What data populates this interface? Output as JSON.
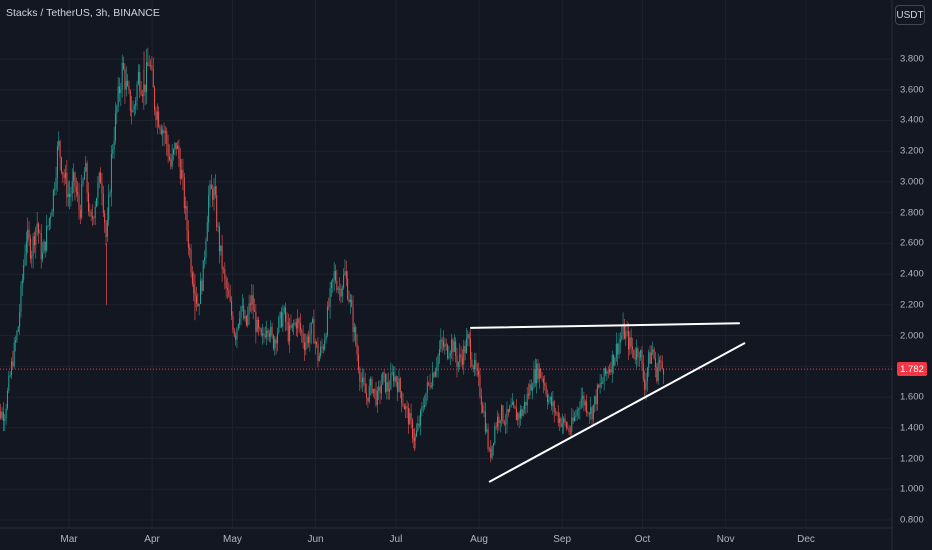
{
  "header": {
    "symbol_text": "Stacks / TetherUS, 3h, BINANCE",
    "currency_button": "USDT"
  },
  "colors": {
    "up": "#26a69a",
    "down": "#ef5350",
    "background": "#131722",
    "last_price": "#f23645",
    "trendline": "#ffffff"
  },
  "chart_data": {
    "type": "candlestick",
    "title": "Stacks / TetherUS, 3h, BINANCE",
    "x_range": [
      "2023-02-01",
      "2023-12-31"
    ],
    "ylim": [
      0.8,
      4.0
    ],
    "y_ticks": [
      "0.800",
      "1.000",
      "1.200",
      "1.400",
      "1.600",
      "1.800",
      "2.000",
      "2.200",
      "2.400",
      "2.600",
      "2.800",
      "3.000",
      "3.200",
      "3.400",
      "3.600",
      "3.800"
    ],
    "x_ticks": [
      {
        "label": "Mar",
        "date": "2023-03-01"
      },
      {
        "label": "Apr",
        "date": "2023-04-01"
      },
      {
        "label": "May",
        "date": "2023-05-01"
      },
      {
        "label": "Jun",
        "date": "2023-06-01"
      },
      {
        "label": "Jul",
        "date": "2023-07-01"
      },
      {
        "label": "Aug",
        "date": "2023-08-01"
      },
      {
        "label": "Sep",
        "date": "2023-09-01"
      },
      {
        "label": "Oct",
        "date": "2023-10-01"
      },
      {
        "label": "Nov",
        "date": "2023-11-01"
      },
      {
        "label": "Dec",
        "date": "2023-12-01"
      }
    ],
    "last_price": 1.782,
    "last_price_label": "1.782",
    "price_path": [
      [
        "2023-02-01",
        1.48
      ],
      [
        "2023-02-05",
        1.5
      ],
      [
        "2023-02-08",
        1.85
      ],
      [
        "2023-02-10",
        2.05
      ],
      [
        "2023-02-13",
        2.65
      ],
      [
        "2023-02-15",
        2.55
      ],
      [
        "2023-02-17",
        2.75
      ],
      [
        "2023-02-19",
        2.5
      ],
      [
        "2023-02-21",
        2.7
      ],
      [
        "2023-02-23",
        2.9
      ],
      [
        "2023-02-25",
        3.25
      ],
      [
        "2023-02-27",
        3.05
      ],
      [
        "2023-03-01",
        2.9
      ],
      [
        "2023-03-03",
        3.0
      ],
      [
        "2023-03-05",
        2.8
      ],
      [
        "2023-03-07",
        3.1
      ],
      [
        "2023-03-09",
        2.7
      ],
      [
        "2023-03-11",
        2.9
      ],
      [
        "2023-03-13",
        3.05
      ],
      [
        "2023-03-15",
        2.6
      ],
      [
        "2023-03-17",
        3.2
      ],
      [
        "2023-03-19",
        3.5
      ],
      [
        "2023-03-21",
        3.75
      ],
      [
        "2023-03-23",
        3.55
      ],
      [
        "2023-03-25",
        3.45
      ],
      [
        "2023-03-27",
        3.7
      ],
      [
        "2023-03-29",
        3.6
      ],
      [
        "2023-03-31",
        3.8
      ],
      [
        "2023-04-02",
        3.5
      ],
      [
        "2023-04-04",
        3.4
      ],
      [
        "2023-04-06",
        3.3
      ],
      [
        "2023-04-08",
        3.1
      ],
      [
        "2023-04-10",
        3.25
      ],
      [
        "2023-04-12",
        3.05
      ],
      [
        "2023-04-14",
        2.7
      ],
      [
        "2023-04-16",
        2.4
      ],
      [
        "2023-04-18",
        2.2
      ],
      [
        "2023-04-20",
        2.4
      ],
      [
        "2023-04-22",
        2.9
      ],
      [
        "2023-04-24",
        2.95
      ],
      [
        "2023-04-26",
        2.6
      ],
      [
        "2023-04-28",
        2.35
      ],
      [
        "2023-04-30",
        2.2
      ],
      [
        "2023-05-02",
        2.0
      ],
      [
        "2023-05-04",
        2.2
      ],
      [
        "2023-05-06",
        2.05
      ],
      [
        "2023-05-08",
        2.25
      ],
      [
        "2023-05-10",
        2.05
      ],
      [
        "2023-05-12",
        1.95
      ],
      [
        "2023-05-14",
        2.1
      ],
      [
        "2023-05-16",
        1.95
      ],
      [
        "2023-05-18",
        2.05
      ],
      [
        "2023-05-20",
        2.15
      ],
      [
        "2023-05-22",
        2.0
      ],
      [
        "2023-05-25",
        2.1
      ],
      [
        "2023-05-28",
        1.95
      ],
      [
        "2023-05-31",
        2.05
      ],
      [
        "2023-06-02",
        1.85
      ],
      [
        "2023-06-04",
        1.95
      ],
      [
        "2023-06-06",
        2.2
      ],
      [
        "2023-06-08",
        2.4
      ],
      [
        "2023-06-10",
        2.3
      ],
      [
        "2023-06-12",
        2.4
      ],
      [
        "2023-06-14",
        2.2
      ],
      [
        "2023-06-16",
        1.95
      ],
      [
        "2023-06-18",
        1.7
      ],
      [
        "2023-06-20",
        1.6
      ],
      [
        "2023-06-22",
        1.68
      ],
      [
        "2023-06-24",
        1.58
      ],
      [
        "2023-06-26",
        1.72
      ],
      [
        "2023-06-28",
        1.65
      ],
      [
        "2023-06-30",
        1.75
      ],
      [
        "2023-07-02",
        1.68
      ],
      [
        "2023-07-04",
        1.55
      ],
      [
        "2023-07-06",
        1.45
      ],
      [
        "2023-07-08",
        1.32
      ],
      [
        "2023-07-10",
        1.45
      ],
      [
        "2023-07-12",
        1.62
      ],
      [
        "2023-07-14",
        1.72
      ],
      [
        "2023-07-16",
        1.82
      ],
      [
        "2023-07-18",
        1.95
      ],
      [
        "2023-07-20",
        1.9
      ],
      [
        "2023-07-22",
        1.96
      ],
      [
        "2023-07-24",
        1.82
      ],
      [
        "2023-07-26",
        1.88
      ],
      [
        "2023-07-28",
        1.98
      ],
      [
        "2023-07-30",
        1.8
      ],
      [
        "2023-08-01",
        1.68
      ],
      [
        "2023-08-03",
        1.48
      ],
      [
        "2023-08-05",
        1.2
      ],
      [
        "2023-08-07",
        1.42
      ],
      [
        "2023-08-09",
        1.5
      ],
      [
        "2023-08-11",
        1.45
      ],
      [
        "2023-08-13",
        1.52
      ],
      [
        "2023-08-15",
        1.48
      ],
      [
        "2023-08-17",
        1.5
      ],
      [
        "2023-08-19",
        1.6
      ],
      [
        "2023-08-21",
        1.72
      ],
      [
        "2023-08-23",
        1.78
      ],
      [
        "2023-08-25",
        1.72
      ],
      [
        "2023-08-27",
        1.58
      ],
      [
        "2023-08-29",
        1.52
      ],
      [
        "2023-08-31",
        1.46
      ],
      [
        "2023-09-02",
        1.42
      ],
      [
        "2023-09-04",
        1.38
      ],
      [
        "2023-09-06",
        1.48
      ],
      [
        "2023-09-08",
        1.6
      ],
      [
        "2023-09-10",
        1.55
      ],
      [
        "2023-09-12",
        1.5
      ],
      [
        "2023-09-14",
        1.62
      ],
      [
        "2023-09-16",
        1.7
      ],
      [
        "2023-09-18",
        1.78
      ],
      [
        "2023-09-20",
        1.85
      ],
      [
        "2023-09-22",
        1.95
      ],
      [
        "2023-09-24",
        2.03
      ],
      [
        "2023-09-26",
        1.95
      ],
      [
        "2023-09-28",
        1.88
      ],
      [
        "2023-09-30",
        1.92
      ],
      [
        "2023-10-01",
        1.75
      ],
      [
        "2023-10-02",
        1.68
      ],
      [
        "2023-10-03",
        1.82
      ],
      [
        "2023-10-05",
        1.92
      ],
      [
        "2023-10-06",
        1.72
      ],
      [
        "2023-10-07",
        1.85
      ],
      [
        "2023-10-08",
        1.78
      ],
      [
        "2023-10-09",
        1.8
      ]
    ],
    "trendlines": [
      {
        "name": "resistance",
        "from": [
          "2023-07-29",
          2.05
        ],
        "to": [
          "2023-11-06",
          2.08
        ]
      },
      {
        "name": "support",
        "from": [
          "2023-08-05",
          1.05
        ],
        "to": [
          "2023-11-08",
          1.95
        ]
      }
    ]
  }
}
